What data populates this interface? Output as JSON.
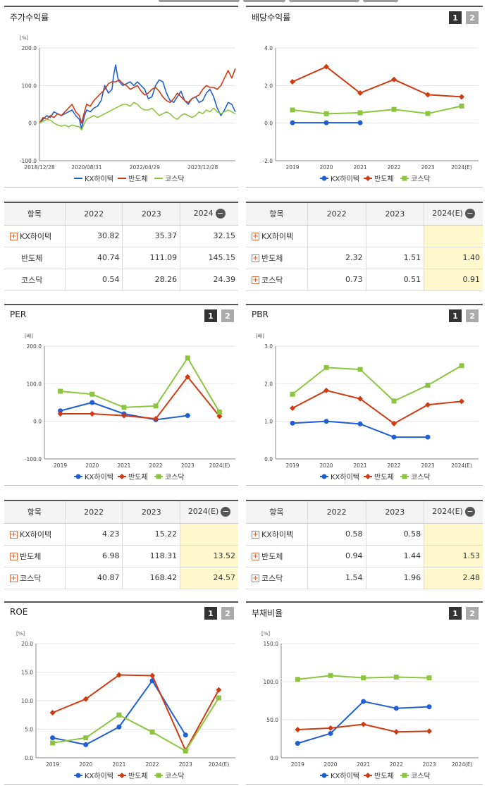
{
  "colors": {
    "kx": "#1f5fd6",
    "semi": "#d03a10",
    "kosdaq": "#8cc63f"
  },
  "charts": [
    {
      "id": "stock",
      "title": "주가수익률",
      "buttons": [],
      "unit": "[%]",
      "chart_data": {
        "type": "line",
        "yticks": [
          "200.0",
          "100.0",
          "0.0",
          "-100.0"
        ],
        "ylim": [
          -100,
          200
        ],
        "xlabels": [
          "2018/12/28",
          "2020/08/31",
          "2022/04/29",
          "2023/12/28"
        ],
        "xlim": [
          0,
          270
        ],
        "xlabel_pos": [
          0,
          65,
          145,
          225
        ],
        "legend": [
          "KX하이텍",
          "반도체",
          "코스닥"
        ],
        "markers": false,
        "series": [
          {
            "name": "KX하이텍",
            "x": [
              0,
              5,
              10,
              15,
              20,
              25,
              30,
              35,
              40,
              45,
              50,
              55,
              58,
              62,
              65,
              70,
              75,
              80,
              85,
              90,
              95,
              100,
              102,
              105,
              108,
              110,
              115,
              120,
              125,
              130,
              135,
              140,
              145,
              150,
              155,
              160,
              165,
              170,
              175,
              180,
              185,
              190,
              195,
              200,
              205,
              210,
              215,
              220,
              225,
              230,
              235,
              240,
              245,
              250,
              255,
              260,
              265,
              270
            ],
            "values": [
              0,
              10,
              20,
              15,
              30,
              25,
              20,
              25,
              30,
              35,
              20,
              10,
              -15,
              20,
              35,
              30,
              40,
              45,
              60,
              100,
              80,
              90,
              125,
              155,
              120,
              110,
              100,
              105,
              110,
              100,
              110,
              100,
              90,
              65,
              70,
              100,
              115,
              110,
              80,
              60,
              55,
              70,
              85,
              60,
              50,
              65,
              70,
              55,
              60,
              80,
              90,
              70,
              40,
              20,
              35,
              55,
              50,
              30
            ]
          },
          {
            "name": "반도체",
            "x": [
              0,
              5,
              10,
              15,
              20,
              25,
              30,
              35,
              40,
              45,
              50,
              55,
              58,
              62,
              65,
              70,
              75,
              80,
              85,
              90,
              95,
              100,
              105,
              110,
              115,
              120,
              125,
              130,
              135,
              140,
              145,
              150,
              155,
              160,
              165,
              170,
              175,
              180,
              185,
              190,
              195,
              200,
              205,
              210,
              215,
              220,
              225,
              230,
              235,
              240,
              245,
              250,
              255,
              260,
              265,
              270
            ],
            "values": [
              0,
              15,
              10,
              20,
              15,
              25,
              20,
              30,
              40,
              50,
              30,
              20,
              0,
              30,
              50,
              45,
              60,
              70,
              80,
              90,
              105,
              110,
              110,
              115,
              105,
              100,
              90,
              95,
              100,
              85,
              75,
              80,
              90,
              95,
              85,
              70,
              60,
              55,
              65,
              80,
              70,
              60,
              55,
              65,
              70,
              75,
              90,
              100,
              95,
              95,
              90,
              100,
              120,
              140,
              120,
              145
            ]
          },
          {
            "name": "코스닥",
            "x": [
              0,
              5,
              10,
              15,
              20,
              25,
              30,
              35,
              40,
              45,
              50,
              55,
              58,
              62,
              65,
              70,
              75,
              80,
              85,
              90,
              95,
              100,
              105,
              110,
              115,
              120,
              125,
              130,
              135,
              140,
              145,
              150,
              155,
              160,
              165,
              170,
              175,
              180,
              185,
              190,
              195,
              200,
              205,
              210,
              215,
              220,
              225,
              230,
              235,
              240,
              245,
              250,
              255,
              260,
              265,
              270
            ],
            "values": [
              0,
              5,
              10,
              8,
              0,
              -5,
              -8,
              -5,
              -10,
              -5,
              -8,
              -10,
              -18,
              0,
              10,
              15,
              20,
              15,
              20,
              25,
              30,
              35,
              40,
              45,
              50,
              50,
              45,
              55,
              50,
              40,
              35,
              35,
              40,
              30,
              20,
              25,
              30,
              25,
              15,
              10,
              20,
              25,
              20,
              15,
              20,
              30,
              25,
              35,
              30,
              40,
              30,
              25,
              30,
              35,
              30,
              25
            ]
          }
        ]
      }
    },
    {
      "id": "dividend",
      "title": "배당수익률",
      "buttons": [
        "1",
        "2"
      ],
      "unit": "",
      "chart_data": {
        "type": "line",
        "yticks": [
          "4.0",
          "2.0",
          "0.0",
          "-2.0"
        ],
        "ylim": [
          -2,
          4
        ],
        "xlabels": [
          "2019",
          "2020",
          "2021",
          "2022",
          "2023",
          "2024(E)"
        ],
        "legend": [
          "KX하이텍",
          "반도체",
          "코스닥"
        ],
        "markers": true,
        "series": [
          {
            "name": "KX하이텍",
            "values": [
              0.02,
              0.02,
              0.02,
              null,
              null,
              null
            ]
          },
          {
            "name": "반도체",
            "values": [
              2.2,
              3.0,
              1.6,
              2.32,
              1.51,
              1.4
            ]
          },
          {
            "name": "코스닥",
            "values": [
              0.7,
              0.5,
              0.55,
              0.73,
              0.51,
              0.91
            ]
          }
        ]
      }
    },
    {
      "id": "per",
      "title": "PER",
      "buttons": [
        "1",
        "2"
      ],
      "unit": "[배]",
      "chart_data": {
        "type": "line",
        "yticks": [
          "200.0",
          "100.0",
          "0.0",
          "-100.0"
        ],
        "ylim": [
          -100,
          200
        ],
        "xlabels": [
          "2019",
          "2020",
          "2021",
          "2022",
          "2023",
          "2024(E)"
        ],
        "legend": [
          "KX하이텍",
          "반도체",
          "코스닥"
        ],
        "markers": true,
        "series": [
          {
            "name": "KX하이텍",
            "values": [
              28,
              50,
              20,
              4.23,
              15.22,
              null
            ]
          },
          {
            "name": "반도체",
            "values": [
              20,
              20,
              15,
              6.98,
              118.31,
              13.52
            ]
          },
          {
            "name": "코스닥",
            "values": [
              80,
              72,
              37,
              40.87,
              168.42,
              24.57
            ]
          }
        ]
      }
    },
    {
      "id": "pbr",
      "title": "PBR",
      "buttons": [
        "1",
        "2"
      ],
      "unit": "[배]",
      "chart_data": {
        "type": "line",
        "yticks": [
          "3.0",
          "2.0",
          "1.0",
          "0.0"
        ],
        "ylim": [
          0,
          3
        ],
        "xlabels": [
          "2019",
          "2020",
          "2021",
          "2022",
          "2023",
          "2024(E)"
        ],
        "legend": [
          "KX하이텍",
          "반도체",
          "코스닥"
        ],
        "markers": true,
        "series": [
          {
            "name": "KX하이텍",
            "values": [
              0.95,
              1.0,
              0.93,
              0.58,
              0.58,
              null
            ]
          },
          {
            "name": "반도체",
            "values": [
              1.35,
              1.82,
              1.6,
              0.94,
              1.44,
              1.53
            ]
          },
          {
            "name": "코스닥",
            "values": [
              1.72,
              2.43,
              2.38,
              1.54,
              1.96,
              2.48
            ]
          }
        ]
      }
    },
    {
      "id": "roe",
      "title": "ROE",
      "buttons": [
        "1",
        "2"
      ],
      "unit": "[%]",
      "chart_data": {
        "type": "line",
        "yticks": [
          "20.0",
          "15.0",
          "10.0",
          "5.0",
          "0.0"
        ],
        "ylim": [
          0,
          20
        ],
        "xlabels": [
          "2019",
          "2020",
          "2021",
          "2022",
          "2023",
          "2024(E)"
        ],
        "legend": [
          "KX하이텍",
          "반도체",
          "코스닥"
        ],
        "markers": true,
        "series": [
          {
            "name": "KX하이텍",
            "values": [
              3.5,
              2.3,
              5.4,
              13.5,
              4.0,
              null
            ]
          },
          {
            "name": "반도체",
            "values": [
              7.9,
              10.3,
              14.5,
              14.4,
              1.3,
              11.9
            ]
          },
          {
            "name": "코스닥",
            "values": [
              2.6,
              3.5,
              7.5,
              4.5,
              1.2,
              10.5
            ]
          }
        ]
      }
    },
    {
      "id": "debt",
      "title": "부채비율",
      "buttons": [
        "1",
        "2"
      ],
      "unit": "[%]",
      "chart_data": {
        "type": "line",
        "yticks": [
          "150.0",
          "100.0",
          "50.0",
          "0.0"
        ],
        "ylim": [
          0,
          150
        ],
        "xlabels": [
          "2019",
          "2020",
          "2021",
          "2022",
          "2023",
          "2024(E)"
        ],
        "legend": [
          "KX하이텍",
          "반도체",
          "코스닥"
        ],
        "markers": true,
        "series": [
          {
            "name": "KX하이텍",
            "values": [
              19,
              32,
              74,
              65,
              67,
              null
            ]
          },
          {
            "name": "반도체",
            "values": [
              37,
              39,
              44,
              34,
              35,
              null
            ]
          },
          {
            "name": "코스닥",
            "values": [
              103,
              108,
              105,
              106,
              105,
              null
            ]
          }
        ]
      }
    }
  ],
  "tables": [
    {
      "id": "stock-table",
      "headers": [
        "항목",
        "2022",
        "2023",
        "2024"
      ],
      "header_minus": true,
      "rows": [
        {
          "label": "KX하이텍",
          "plus": true,
          "cells": [
            "30.82",
            "35.37",
            "32.15"
          ],
          "est": [
            false,
            false,
            false
          ]
        },
        {
          "label": "반도체",
          "plus": false,
          "cells": [
            "40.74",
            "111.09",
            "145.15"
          ],
          "est": [
            false,
            false,
            false
          ]
        },
        {
          "label": "코스닥",
          "plus": false,
          "cells": [
            "0.54",
            "28.26",
            "24.39"
          ],
          "est": [
            false,
            false,
            false
          ]
        }
      ]
    },
    {
      "id": "dividend-table",
      "headers": [
        "항목",
        "2022",
        "2023",
        "2024(E)"
      ],
      "header_minus": true,
      "rows": [
        {
          "label": "KX하이텍",
          "plus": true,
          "cells": [
            "",
            "",
            ""
          ],
          "est": [
            false,
            false,
            true
          ]
        },
        {
          "label": "반도체",
          "plus": true,
          "cells": [
            "2.32",
            "1.51",
            "1.40"
          ],
          "est": [
            false,
            false,
            true
          ]
        },
        {
          "label": "코스닥",
          "plus": true,
          "cells": [
            "0.73",
            "0.51",
            "0.91"
          ],
          "est": [
            false,
            false,
            true
          ]
        }
      ]
    },
    {
      "id": "per-table",
      "headers": [
        "항목",
        "2022",
        "2023",
        "2024(E)"
      ],
      "header_minus": true,
      "rows": [
        {
          "label": "KX하이텍",
          "plus": true,
          "cells": [
            "4.23",
            "15.22",
            ""
          ],
          "est": [
            false,
            false,
            true
          ]
        },
        {
          "label": "반도체",
          "plus": true,
          "cells": [
            "6.98",
            "118.31",
            "13.52"
          ],
          "est": [
            false,
            false,
            true
          ]
        },
        {
          "label": "코스닥",
          "plus": true,
          "cells": [
            "40.87",
            "168.42",
            "24.57"
          ],
          "est": [
            false,
            false,
            true
          ]
        }
      ]
    },
    {
      "id": "pbr-table",
      "headers": [
        "항목",
        "2022",
        "2023",
        "2024(E)"
      ],
      "header_minus": true,
      "rows": [
        {
          "label": "KX하이텍",
          "plus": true,
          "cells": [
            "0.58",
            "0.58",
            ""
          ],
          "est": [
            false,
            false,
            true
          ]
        },
        {
          "label": "반도체",
          "plus": true,
          "cells": [
            "0.94",
            "1.44",
            "1.53"
          ],
          "est": [
            false,
            false,
            true
          ]
        },
        {
          "label": "코스닥",
          "plus": true,
          "cells": [
            "1.54",
            "1.96",
            "2.48"
          ],
          "est": [
            false,
            false,
            true
          ]
        }
      ]
    }
  ]
}
